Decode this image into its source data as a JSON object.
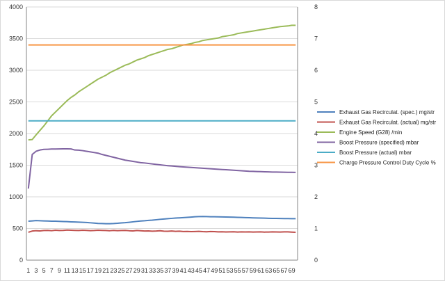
{
  "chart_data": {
    "type": "line",
    "title": "",
    "xlabel": "",
    "ylabel": "",
    "y2label": "",
    "grid": true,
    "legend_position": "right",
    "x_ticks": [
      1,
      3,
      5,
      7,
      9,
      11,
      13,
      15,
      17,
      19,
      21,
      23,
      25,
      27,
      29,
      31,
      33,
      35,
      37,
      39,
      41,
      43,
      45,
      47,
      49,
      51,
      53,
      55,
      57,
      59,
      61,
      63,
      65,
      67,
      69
    ],
    "xlim": [
      1,
      70
    ],
    "ylim": [
      0,
      4000
    ],
    "y_ticks": [
      0,
      500,
      1000,
      1500,
      2000,
      2500,
      3000,
      3500,
      4000
    ],
    "y2lim": [
      0,
      8
    ],
    "y2_ticks": [
      0,
      1,
      2,
      3,
      4,
      5,
      6,
      7,
      8
    ],
    "series": [
      {
        "name": "Exhaust Gas Recirculat. (spec.)  mg/str",
        "color": "#4f81bd",
        "axis": "left",
        "values": [
          615,
          620,
          625,
          622,
          620,
          618,
          615,
          615,
          612,
          610,
          608,
          605,
          603,
          600,
          598,
          595,
          590,
          585,
          580,
          578,
          575,
          576,
          578,
          582,
          588,
          592,
          598,
          605,
          612,
          618,
          622,
          628,
          632,
          638,
          645,
          650,
          655,
          660,
          665,
          668,
          672,
          676,
          680,
          685,
          688,
          690,
          688,
          686,
          685,
          684,
          683,
          682,
          680,
          678,
          676,
          675,
          672,
          670,
          668,
          666,
          665,
          663,
          661,
          660,
          659,
          658,
          657,
          656,
          655,
          655
        ]
      },
      {
        "name": "Exhaust Gas Recirculat. (actual)  mg/str",
        "color": "#c0504d",
        "axis": "left",
        "values": [
          440,
          460,
          465,
          462,
          468,
          470,
          465,
          472,
          468,
          470,
          475,
          472,
          470,
          468,
          473,
          470,
          466,
          468,
          472,
          470,
          468,
          465,
          470,
          466,
          468,
          470,
          465,
          462,
          468,
          464,
          460,
          462,
          458,
          460,
          464,
          458,
          456,
          460,
          455,
          458,
          452,
          454,
          450,
          452,
          455,
          450,
          448,
          452,
          450,
          446,
          448,
          445,
          446,
          448,
          444,
          446,
          445,
          447,
          444,
          445,
          446,
          443,
          444,
          446,
          445,
          444,
          446,
          447,
          443,
          440
        ]
      },
      {
        "name": "Engine Speed (G28)  /min",
        "color": "#9bbb59",
        "axis": "left",
        "values": [
          1900,
          1905,
          1980,
          2050,
          2120,
          2200,
          2280,
          2340,
          2400,
          2460,
          2520,
          2570,
          2610,
          2660,
          2700,
          2740,
          2780,
          2820,
          2860,
          2890,
          2920,
          2960,
          2990,
          3020,
          3050,
          3080,
          3100,
          3130,
          3160,
          3180,
          3200,
          3230,
          3250,
          3270,
          3290,
          3310,
          3330,
          3340,
          3360,
          3380,
          3400,
          3410,
          3420,
          3440,
          3450,
          3470,
          3480,
          3490,
          3500,
          3510,
          3530,
          3540,
          3550,
          3560,
          3580,
          3590,
          3600,
          3610,
          3620,
          3630,
          3640,
          3650,
          3660,
          3670,
          3680,
          3690,
          3695,
          3700,
          3710,
          3710
        ]
      },
      {
        "name": "Boost Pressure (specified)  mbar",
        "color": "#8064a2",
        "axis": "left",
        "values": [
          1130,
          1670,
          1720,
          1740,
          1750,
          1752,
          1755,
          1756,
          1757,
          1758,
          1758,
          1757,
          1740,
          1738,
          1730,
          1720,
          1710,
          1700,
          1690,
          1670,
          1655,
          1640,
          1625,
          1610,
          1595,
          1580,
          1570,
          1560,
          1550,
          1540,
          1535,
          1528,
          1520,
          1512,
          1505,
          1498,
          1492,
          1487,
          1482,
          1477,
          1472,
          1468,
          1464,
          1460,
          1456,
          1452,
          1448,
          1444,
          1440,
          1436,
          1432,
          1428,
          1424,
          1420,
          1416,
          1412,
          1408,
          1404,
          1402,
          1400,
          1398,
          1396,
          1394,
          1392,
          1391,
          1390,
          1389,
          1388,
          1387,
          1386
        ]
      },
      {
        "name": "Boost Pressure (actual)  mbar",
        "color": "#4bacc6",
        "axis": "left",
        "values": [
          2200,
          2200,
          2200,
          2200,
          2200,
          2200,
          2200,
          2200,
          2200,
          2200,
          2200,
          2200,
          2200,
          2200,
          2200,
          2200,
          2200,
          2200,
          2200,
          2200,
          2200,
          2200,
          2200,
          2200,
          2200,
          2200,
          2200,
          2200,
          2200,
          2200,
          2200,
          2200,
          2200,
          2200,
          2200,
          2200,
          2200,
          2200,
          2200,
          2200,
          2200,
          2200,
          2200,
          2200,
          2200,
          2200,
          2200,
          2200,
          2200,
          2200,
          2200,
          2200,
          2200,
          2200,
          2200,
          2200,
          2200,
          2200,
          2200,
          2200,
          2200,
          2200,
          2200,
          2200,
          2200,
          2200,
          2200,
          2200,
          2200,
          2200
        ]
      },
      {
        "name": "Charge Pressure Control Duty Cycle  %",
        "color": "#f79646",
        "axis": "left",
        "values": [
          3400,
          3400,
          3400,
          3400,
          3400,
          3400,
          3400,
          3400,
          3400,
          3400,
          3400,
          3400,
          3400,
          3400,
          3400,
          3400,
          3400,
          3400,
          3400,
          3400,
          3400,
          3400,
          3400,
          3400,
          3400,
          3400,
          3400,
          3400,
          3400,
          3400,
          3400,
          3400,
          3400,
          3400,
          3400,
          3400,
          3400,
          3400,
          3400,
          3400,
          3400,
          3400,
          3400,
          3400,
          3400,
          3400,
          3400,
          3400,
          3400,
          3400,
          3400,
          3400,
          3400,
          3400,
          3400,
          3400,
          3400,
          3400,
          3400,
          3400,
          3400,
          3400,
          3400,
          3400,
          3400,
          3400,
          3400,
          3400,
          3400,
          3400
        ]
      }
    ]
  }
}
